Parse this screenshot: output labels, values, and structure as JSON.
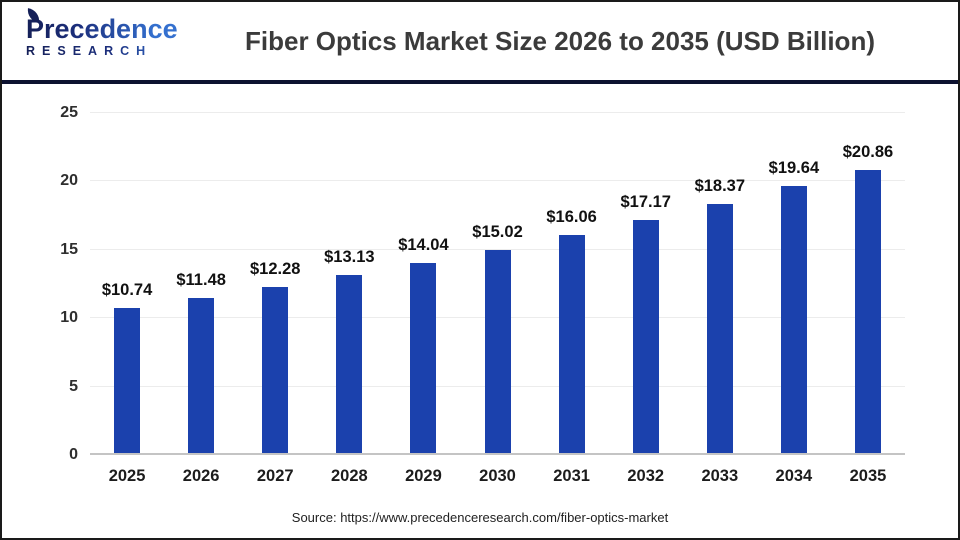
{
  "header": {
    "logo": {
      "name": "Precedence",
      "subname": "RESEARCH",
      "navy": "#152058",
      "blue": "#3470cf"
    },
    "title": "Fiber Optics Market Size 2026 to 2035 (USD Billion)"
  },
  "chart_data": {
    "type": "bar",
    "title": "Fiber Optics Market Size 2026 to 2035 (USD Billion)",
    "categories": [
      "2025",
      "2026",
      "2027",
      "2028",
      "2029",
      "2030",
      "2031",
      "2032",
      "2033",
      "2034",
      "2035"
    ],
    "values": [
      10.74,
      11.48,
      12.28,
      13.13,
      14.04,
      15.02,
      16.06,
      17.17,
      18.37,
      19.64,
      20.86
    ],
    "value_labels": [
      "$10.74",
      "$11.48",
      "$12.28",
      "$13.13",
      "$14.04",
      "$15.02",
      "$16.06",
      "$17.17",
      "$18.37",
      "$19.64",
      "$20.86"
    ],
    "xlabel": "",
    "ylabel": "",
    "ylim": [
      0,
      25
    ],
    "yticks": [
      0,
      5,
      10,
      15,
      20,
      25
    ],
    "grid": "horizontal",
    "legend": "none",
    "bar_color": "#1b41ad",
    "divider_color": "#0d1230"
  },
  "footer": {
    "source": "Source: https://www.precedenceresearch.com/fiber-optics-market"
  }
}
